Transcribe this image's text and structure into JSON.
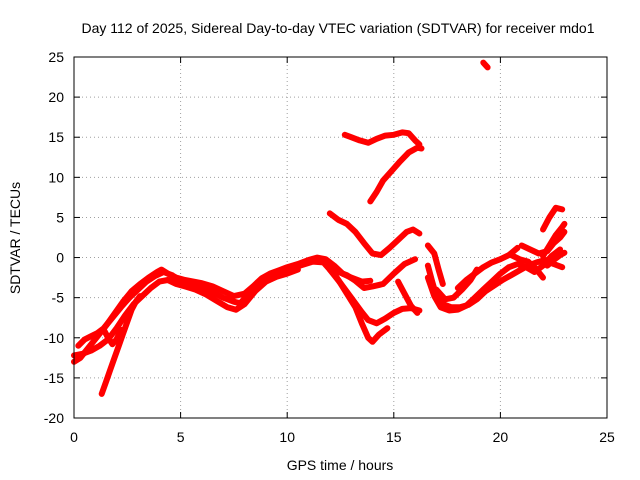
{
  "chart_data": {
    "type": "scatter",
    "title": "Day 112 of 2025, Sidereal Day-to-day VTEC variation (SDTVAR) for receiver mdo1",
    "xlabel": "GPS time / hours",
    "ylabel": "SDTVAR / TECUs",
    "xlim": [
      0,
      25
    ],
    "ylim": [
      -20,
      25
    ],
    "xticks": [
      0,
      5,
      10,
      15,
      20,
      25
    ],
    "yticks": [
      -20,
      -15,
      -10,
      -5,
      0,
      5,
      10,
      15,
      20,
      25
    ],
    "grid": true,
    "color": "#ff0000",
    "series": [
      {
        "points": [
          [
            0.0,
            -13.0
          ],
          [
            0.3,
            -12.5
          ],
          [
            0.6,
            -11.5
          ],
          [
            0.9,
            -10.5
          ],
          [
            1.2,
            -9.5
          ],
          [
            1.5,
            -8.5
          ],
          [
            1.9,
            -7.0
          ],
          [
            2.3,
            -5.5
          ],
          [
            2.7,
            -4.2
          ],
          [
            3.1,
            -3.3
          ],
          [
            3.5,
            -2.5
          ],
          [
            3.9,
            -1.8
          ],
          [
            4.1,
            -1.5
          ],
          [
            4.4,
            -2.0
          ],
          [
            4.8,
            -2.5
          ],
          [
            5.2,
            -2.8
          ],
          [
            5.6,
            -3.0
          ],
          [
            6.0,
            -3.2
          ],
          [
            6.5,
            -3.6
          ],
          [
            7.0,
            -4.2
          ],
          [
            7.5,
            -4.8
          ],
          [
            8.0,
            -4.5
          ],
          [
            8.4,
            -3.6
          ],
          [
            8.8,
            -2.6
          ],
          [
            9.2,
            -2.0
          ],
          [
            9.6,
            -1.6
          ],
          [
            10.0,
            -1.2
          ],
          [
            10.5,
            -0.8
          ],
          [
            11.0,
            -0.3
          ],
          [
            11.4,
            0.0
          ],
          [
            11.8,
            -0.2
          ],
          [
            12.2,
            -1.0
          ],
          [
            12.6,
            -2.0
          ]
        ]
      },
      {
        "points": [
          [
            0.2,
            -11.0
          ],
          [
            0.5,
            -10.2
          ],
          [
            0.8,
            -9.8
          ],
          [
            1.1,
            -9.4
          ],
          [
            1.4,
            -8.8
          ],
          [
            1.8,
            -7.5
          ],
          [
            2.2,
            -6.2
          ],
          [
            2.6,
            -5.0
          ],
          [
            3.0,
            -4.0
          ],
          [
            3.4,
            -3.0
          ],
          [
            3.8,
            -2.3
          ],
          [
            4.2,
            -1.8
          ],
          [
            4.6,
            -2.2
          ],
          [
            5.0,
            -3.0
          ],
          [
            5.5,
            -3.5
          ],
          [
            6.0,
            -3.8
          ],
          [
            6.5,
            -4.3
          ],
          [
            7.0,
            -5.0
          ],
          [
            7.5,
            -5.5
          ],
          [
            7.8,
            -5.7
          ],
          [
            8.2,
            -4.5
          ],
          [
            8.6,
            -3.3
          ],
          [
            9.0,
            -2.5
          ],
          [
            9.5,
            -2.0
          ],
          [
            10.0,
            -1.6
          ],
          [
            10.6,
            -1.0
          ],
          [
            11.2,
            -0.5
          ],
          [
            11.7,
            -0.6
          ],
          [
            12.1,
            -1.8
          ]
        ]
      },
      {
        "points": [
          [
            0.0,
            -12.2
          ],
          [
            0.4,
            -12.0
          ],
          [
            0.8,
            -11.6
          ],
          [
            1.2,
            -11.0
          ],
          [
            1.6,
            -10.2
          ],
          [
            2.0,
            -8.8
          ],
          [
            2.4,
            -7.2
          ],
          [
            2.8,
            -5.8
          ],
          [
            3.2,
            -4.8
          ],
          [
            3.6,
            -3.8
          ],
          [
            4.0,
            -3.0
          ],
          [
            4.4,
            -2.8
          ],
          [
            4.8,
            -3.3
          ],
          [
            5.2,
            -3.6
          ],
          [
            5.7,
            -4.0
          ],
          [
            6.2,
            -4.6
          ],
          [
            6.7,
            -5.4
          ],
          [
            7.2,
            -6.2
          ],
          [
            7.6,
            -6.5
          ],
          [
            8.0,
            -5.8
          ],
          [
            8.5,
            -4.2
          ],
          [
            9.0,
            -3.0
          ],
          [
            9.5,
            -2.4
          ],
          [
            10.0,
            -2.0
          ],
          [
            10.5,
            -1.5
          ]
        ]
      },
      {
        "points": [
          [
            1.3,
            -17.0
          ],
          [
            1.5,
            -15.5
          ],
          [
            1.7,
            -14.0
          ],
          [
            1.9,
            -12.5
          ],
          [
            2.1,
            -11.0
          ],
          [
            2.3,
            -9.5
          ],
          [
            2.5,
            -8.0
          ],
          [
            2.7,
            -6.5
          ],
          [
            2.9,
            -5.5
          ],
          [
            3.1,
            -4.8
          ]
        ]
      },
      {
        "points": [
          [
            1.4,
            -9.0
          ],
          [
            1.6,
            -10.0
          ],
          [
            1.8,
            -10.8
          ],
          [
            2.0,
            -10.2
          ],
          [
            2.2,
            -9.0
          ]
        ]
      },
      {
        "points": [
          [
            11.6,
            -0.2
          ],
          [
            12.0,
            -1.2
          ],
          [
            12.4,
            -2.8
          ],
          [
            12.8,
            -4.5
          ],
          [
            13.2,
            -6.2
          ],
          [
            13.5,
            -8.2
          ],
          [
            13.8,
            -10.0
          ],
          [
            14.0,
            -10.5
          ],
          [
            14.3,
            -9.6
          ],
          [
            14.7,
            -8.8
          ]
        ]
      },
      {
        "points": [
          [
            12.0,
            -1.5
          ],
          [
            12.5,
            -3.2
          ],
          [
            13.0,
            -5.0
          ],
          [
            13.5,
            -6.8
          ],
          [
            13.8,
            -7.8
          ],
          [
            14.2,
            -8.2
          ],
          [
            14.6,
            -7.6
          ],
          [
            15.0,
            -6.9
          ],
          [
            15.4,
            -6.4
          ],
          [
            15.8,
            -6.3
          ],
          [
            16.2,
            -6.6
          ]
        ]
      },
      {
        "points": [
          [
            12.4,
            -1.8
          ],
          [
            12.8,
            -2.2
          ],
          [
            13.2,
            -2.9
          ],
          [
            13.6,
            -3.8
          ],
          [
            14.0,
            -3.6
          ],
          [
            14.5,
            -3.3
          ],
          [
            15.0,
            -2.0
          ],
          [
            15.5,
            -0.8
          ],
          [
            16.0,
            -0.2
          ]
        ]
      },
      {
        "points": [
          [
            12.6,
            -2.0
          ],
          [
            13.0,
            -2.5
          ],
          [
            13.5,
            -3.0
          ],
          [
            13.9,
            -2.9
          ]
        ]
      },
      {
        "points": [
          [
            12.7,
            15.3
          ],
          [
            13.0,
            15.0
          ],
          [
            13.4,
            14.6
          ],
          [
            13.8,
            14.3
          ],
          [
            14.2,
            14.8
          ],
          [
            14.6,
            15.2
          ],
          [
            15.0,
            15.3
          ],
          [
            15.4,
            15.6
          ],
          [
            15.7,
            15.5
          ],
          [
            16.0,
            14.6
          ],
          [
            16.2,
            14.1
          ]
        ]
      },
      {
        "points": [
          [
            13.9,
            7.0
          ],
          [
            14.2,
            8.2
          ],
          [
            14.5,
            9.6
          ],
          [
            14.9,
            10.8
          ],
          [
            15.3,
            12.0
          ],
          [
            15.7,
            13.1
          ],
          [
            16.1,
            13.7
          ],
          [
            16.3,
            13.6
          ]
        ]
      },
      {
        "points": [
          [
            12.0,
            5.5
          ],
          [
            12.4,
            4.7
          ],
          [
            12.8,
            4.2
          ],
          [
            13.2,
            3.2
          ],
          [
            13.6,
            1.8
          ],
          [
            14.0,
            0.5
          ],
          [
            14.4,
            0.3
          ],
          [
            14.8,
            1.2
          ],
          [
            15.2,
            2.2
          ],
          [
            15.6,
            3.2
          ],
          [
            15.9,
            3.5
          ],
          [
            16.2,
            3.0
          ]
        ]
      },
      {
        "points": [
          [
            15.2,
            -3.0
          ],
          [
            15.5,
            -4.5
          ],
          [
            15.8,
            -6.0
          ],
          [
            16.1,
            -6.9
          ]
        ]
      },
      {
        "points": [
          [
            16.6,
            1.5
          ],
          [
            16.9,
            0.5
          ],
          [
            17.1,
            -1.5
          ],
          [
            17.3,
            -3.3
          ]
        ]
      },
      {
        "points": [
          [
            16.6,
            -1.0
          ],
          [
            16.8,
            -3.0
          ],
          [
            17.0,
            -4.8
          ],
          [
            17.3,
            -5.8
          ],
          [
            17.7,
            -6.2
          ],
          [
            18.1,
            -6.2
          ],
          [
            18.5,
            -5.9
          ],
          [
            18.9,
            -5.2
          ],
          [
            19.3,
            -4.2
          ],
          [
            19.7,
            -3.5
          ],
          [
            20.1,
            -2.8
          ],
          [
            20.5,
            -2.2
          ],
          [
            20.9,
            -1.6
          ],
          [
            21.3,
            -1.0
          ],
          [
            21.7,
            -0.6
          ],
          [
            22.1,
            -0.3
          ],
          [
            22.5,
            -0.8
          ],
          [
            22.9,
            -1.2
          ]
        ]
      },
      {
        "points": [
          [
            16.6,
            -2.5
          ],
          [
            16.9,
            -4.8
          ],
          [
            17.2,
            -6.2
          ],
          [
            17.6,
            -6.6
          ],
          [
            18.0,
            -6.5
          ],
          [
            18.4,
            -6.0
          ],
          [
            18.8,
            -5.0
          ],
          [
            19.2,
            -4.0
          ],
          [
            19.6,
            -3.0
          ],
          [
            20.0,
            -2.0
          ],
          [
            20.4,
            -1.2
          ],
          [
            20.8,
            -0.8
          ],
          [
            21.2,
            -1.2
          ],
          [
            21.6,
            -1.8
          ],
          [
            22.0,
            -1.0
          ],
          [
            22.4,
            0.2
          ],
          [
            22.8,
            1.0
          ]
        ]
      },
      {
        "points": [
          [
            17.0,
            -4.0
          ],
          [
            17.4,
            -5.2
          ],
          [
            17.8,
            -5.0
          ],
          [
            18.2,
            -4.0
          ],
          [
            18.6,
            -2.8
          ],
          [
            18.9,
            -1.5
          ]
        ]
      },
      {
        "points": [
          [
            18.0,
            -3.8
          ],
          [
            18.4,
            -2.8
          ],
          [
            18.8,
            -2.0
          ],
          [
            19.2,
            -1.2
          ],
          [
            19.6,
            -0.6
          ],
          [
            20.0,
            -0.2
          ],
          [
            20.4,
            0.3
          ],
          [
            20.8,
            1.2
          ]
        ]
      },
      {
        "points": [
          [
            20.5,
            0.3
          ],
          [
            20.9,
            -0.2
          ],
          [
            21.3,
            -0.5
          ],
          [
            21.7,
            -1.5
          ],
          [
            22.0,
            -2.5
          ]
        ]
      },
      {
        "points": [
          [
            21.0,
            1.5
          ],
          [
            21.4,
            1.0
          ],
          [
            21.8,
            0.5
          ],
          [
            22.2,
            0.8
          ],
          [
            22.5,
            1.8
          ],
          [
            22.8,
            2.5
          ],
          [
            23.0,
            3.2
          ]
        ]
      },
      {
        "points": [
          [
            22.0,
            0.2
          ],
          [
            22.3,
            1.5
          ],
          [
            22.6,
            2.8
          ],
          [
            22.9,
            3.8
          ],
          [
            23.0,
            4.2
          ]
        ]
      },
      {
        "points": [
          [
            22.0,
            3.5
          ],
          [
            22.3,
            5.0
          ],
          [
            22.6,
            6.2
          ],
          [
            22.9,
            6.0
          ]
        ]
      },
      {
        "points": [
          [
            22.2,
            -1.0
          ],
          [
            22.5,
            -0.3
          ],
          [
            22.8,
            0.3
          ],
          [
            23.0,
            0.6
          ]
        ]
      },
      {
        "points": [
          [
            19.2,
            24.3
          ],
          [
            19.4,
            23.7
          ]
        ]
      }
    ]
  }
}
